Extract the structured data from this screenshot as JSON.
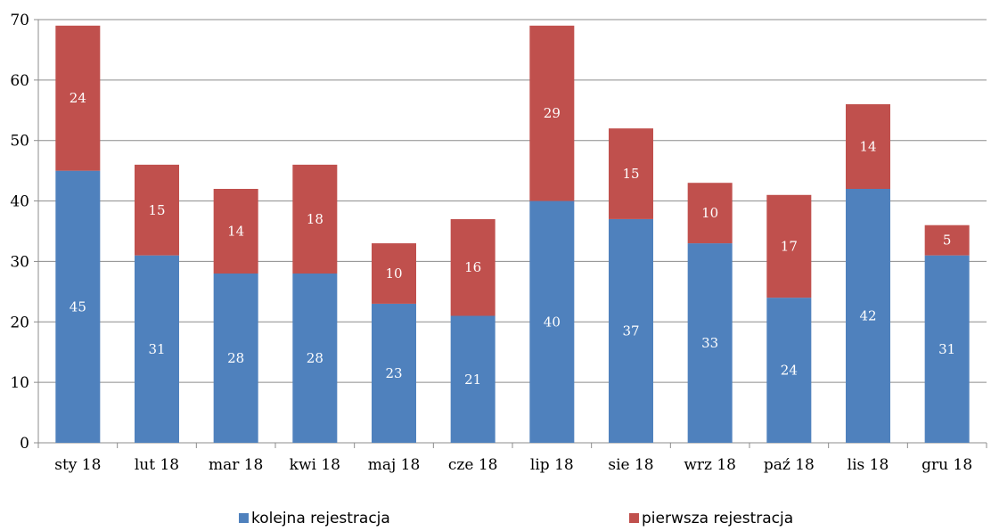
{
  "chart_data": {
    "type": "bar",
    "stacked": true,
    "categories": [
      "sty 18",
      "lut 18",
      "mar 18",
      "kwi 18",
      "maj 18",
      "cze 18",
      "lip 18",
      "sie 18",
      "wrz 18",
      "paź 18",
      "lis 18",
      "gru 18"
    ],
    "series": [
      {
        "name": "kolejna rejestracja",
        "color": "#4f81bd",
        "values": [
          45,
          31,
          28,
          28,
          23,
          21,
          40,
          37,
          33,
          24,
          42,
          31
        ]
      },
      {
        "name": "pierwsza rejestracja",
        "color": "#c0504d",
        "values": [
          24,
          15,
          14,
          18,
          10,
          16,
          29,
          15,
          10,
          17,
          14,
          5
        ]
      }
    ],
    "ylim": [
      0,
      70
    ],
    "yticks": [
      0,
      10,
      20,
      30,
      40,
      50,
      60,
      70
    ],
    "grid": true,
    "legend_position": "bottom",
    "title": "",
    "xlabel": "",
    "ylabel": ""
  }
}
